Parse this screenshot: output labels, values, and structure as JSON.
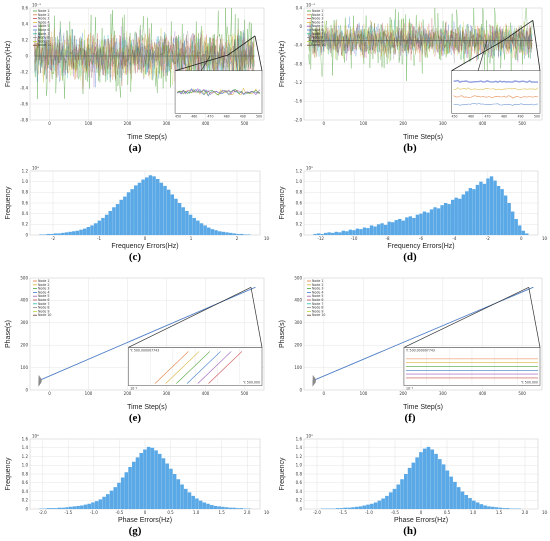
{
  "figure": {
    "panel_labels": [
      "(a)",
      "(b)",
      "(c)",
      "(d)",
      "(e)",
      "(f)",
      "(g)",
      "(h)"
    ]
  },
  "chart_data": [
    {
      "id": "a",
      "type": "line",
      "xlabel": "Time Step(s)",
      "ylabel": "Frequency(Hz)",
      "xlim": [
        0,
        520
      ],
      "ylim": [
        -0.8,
        0.6
      ],
      "x_ticks": [
        "0",
        "100",
        "200",
        "300",
        "400",
        "500"
      ],
      "y_ticks": [
        "-0.8",
        "-0.6",
        "-0.4",
        "-0.2",
        "0",
        "0.2",
        "0.4",
        "0.6"
      ],
      "scale_note": "10⁻³",
      "legend": [
        "Node 1",
        "Node 2",
        "Node 3",
        "Node 4",
        "Node 5",
        "Node 6",
        "Node 7",
        "Node 8",
        "Node 9",
        "Node 10"
      ],
      "legend_position": "top-left",
      "noise_amplitude": 0.45,
      "mean": 0.0,
      "series_colors": [
        "#4da33a",
        "#e07b39",
        "#c94b4b",
        "#d9b43a",
        "#9b59b6",
        "#3a7dc9",
        "#2bb5a8",
        "#8a8a8a",
        "#b5d33a",
        "#6b3a2a"
      ],
      "inset": true,
      "inset_ticks": [
        "450",
        "460",
        "470",
        "480",
        "490",
        "500"
      ]
    },
    {
      "id": "b",
      "type": "line",
      "xlabel": "Time Step(s)",
      "ylabel": "Frequency(Hz)",
      "xlim": [
        0,
        520
      ],
      "ylim": [
        -2.0,
        0.6
      ],
      "x_ticks": [
        "0",
        "100",
        "200",
        "300",
        "400",
        "500"
      ],
      "y_ticks": [
        "-2.0",
        "-1.6",
        "-1.2",
        "-0.8",
        "-0.4",
        "0",
        "0.4"
      ],
      "scale_note": "10⁻³",
      "legend": [
        "Node 1",
        "Node 2",
        "Node 3",
        "Node 4",
        "Node 5",
        "Node 6",
        "Node 7",
        "Node 8",
        "Node 9",
        "Node 10"
      ],
      "legend_position": "top-left",
      "noise_amplitude": 0.6,
      "mean": -0.15,
      "series_colors": [
        "#4da33a",
        "#e07b39",
        "#c94b4b",
        "#d9b43a",
        "#9b59b6",
        "#3a7dc9",
        "#2bb5a8",
        "#8a8a8a",
        "#b5d33a",
        "#6b3a2a"
      ],
      "inset": true,
      "inset_ticks": [
        "450",
        "460",
        "470",
        "480",
        "490",
        "500"
      ]
    },
    {
      "id": "c",
      "type": "bar",
      "xlabel": "Frequency Errors(Hz)",
      "ylabel": "Frequency",
      "xlim": [
        -3,
        3
      ],
      "ylim": [
        0,
        1.2
      ],
      "x_ticks": [
        "-2",
        "-1",
        "0",
        "1",
        "2"
      ],
      "y_ticks": [
        "0",
        "0.2",
        "0.4",
        "0.6",
        "0.8",
        "1.0",
        "1.2"
      ],
      "scale_note": "10⁴",
      "x_scale_note": "10⁻³",
      "color": "#5aa9e6",
      "values": [
        0.01,
        0.01,
        0.02,
        0.02,
        0.03,
        0.03,
        0.04,
        0.05,
        0.06,
        0.07,
        0.08,
        0.1,
        0.12,
        0.15,
        0.18,
        0.22,
        0.27,
        0.32,
        0.38,
        0.45,
        0.52,
        0.58,
        0.66,
        0.72,
        0.8,
        0.86,
        0.93,
        0.98,
        1.04,
        1.08,
        1.12,
        1.1,
        1.05,
        0.98,
        0.92,
        0.85,
        0.76,
        0.68,
        0.6,
        0.52,
        0.45,
        0.38,
        0.32,
        0.27,
        0.22,
        0.18,
        0.14,
        0.11,
        0.09,
        0.07,
        0.06,
        0.05,
        0.04,
        0.03,
        0.02,
        0.02,
        0.01,
        0.01
      ]
    },
    {
      "id": "d",
      "type": "bar",
      "xlabel": "Frequency Errors(Hz)",
      "ylabel": "Frequency",
      "xlim": [
        -14,
        2
      ],
      "ylim": [
        0,
        1.2
      ],
      "x_ticks": [
        "-12",
        "-10",
        "-8",
        "-6",
        "-4",
        "-2",
        "0"
      ],
      "y_ticks": [
        "0",
        "0.2",
        "0.4",
        "0.6",
        "0.8",
        "1.0",
        "1.2"
      ],
      "scale_note": "10³",
      "x_scale_note": "10⁻⁴",
      "color": "#5aa9e6",
      "values": [
        0.02,
        0.03,
        0.02,
        0.04,
        0.05,
        0.04,
        0.06,
        0.05,
        0.08,
        0.07,
        0.1,
        0.09,
        0.12,
        0.11,
        0.14,
        0.13,
        0.18,
        0.16,
        0.2,
        0.22,
        0.19,
        0.25,
        0.24,
        0.28,
        0.3,
        0.27,
        0.33,
        0.35,
        0.32,
        0.38,
        0.4,
        0.44,
        0.42,
        0.48,
        0.52,
        0.5,
        0.56,
        0.6,
        0.58,
        0.66,
        0.7,
        0.68,
        0.76,
        0.82,
        0.88,
        0.86,
        0.94,
        1.0,
        0.96,
        1.06,
        1.1,
        1.02,
        0.92,
        0.86,
        0.74,
        0.6,
        0.44,
        0.3,
        0.18,
        0.08,
        0.03
      ]
    },
    {
      "id": "e",
      "type": "line",
      "xlabel": "Time Step(s)",
      "ylabel": "Phase(s)",
      "xlim": [
        -20,
        520
      ],
      "ylim": [
        -50,
        550
      ],
      "x_ticks": [
        "0",
        "100",
        "200",
        "300",
        "400",
        "500"
      ],
      "y_ticks": [
        "0",
        "100",
        "200",
        "300",
        "400",
        "500"
      ],
      "legend": [
        "Node 1",
        "Node 2",
        "Node 3",
        "Node 4",
        "Node 5",
        "Node 6",
        "Node 7",
        "Node 8",
        "Node 9",
        "Node 10"
      ],
      "legend_position": "top-left",
      "start": [
        0,
        0
      ],
      "end": [
        500,
        500
      ],
      "color": "#5b87c9",
      "inset": true,
      "inset_note": "10⁻⁴",
      "inset_label_top": "Y: 500.000007743",
      "inset_label_bottom": "Y: 500.000"
    },
    {
      "id": "f",
      "type": "line",
      "xlabel": "Time Step(s)",
      "ylabel": "Phase(s)",
      "xlim": [
        -20,
        520
      ],
      "ylim": [
        -50,
        550
      ],
      "x_ticks": [
        "0",
        "100",
        "200",
        "300",
        "400",
        "500"
      ],
      "y_ticks": [
        "0",
        "100",
        "200",
        "300",
        "400",
        "500"
      ],
      "legend": [
        "Node 1",
        "Node 2",
        "Node 3",
        "Node 4",
        "Node 5",
        "Node 6",
        "Node 7",
        "Node 8",
        "Node 9",
        "Node 10"
      ],
      "legend_position": "top-left",
      "start": [
        0,
        0
      ],
      "end": [
        500,
        500
      ],
      "color": "#5b87c9",
      "inset": true,
      "inset_note": "10⁻⁴",
      "inset_label_top": "Y: 500.000007743",
      "inset_label_bottom": "Y: 500.000"
    },
    {
      "id": "g",
      "type": "bar",
      "xlabel": "Phase Errors(Hz)",
      "ylabel": "Frequency",
      "xlim": [
        -2.5,
        2.5
      ],
      "ylim": [
        0,
        1.6
      ],
      "x_ticks": [
        "-2.0",
        "-1.5",
        "-1.0",
        "-0.5",
        "0",
        "0.5",
        "1.0",
        "1.5",
        "2.0"
      ],
      "y_ticks": [
        "0",
        "0.2",
        "0.4",
        "0.6",
        "0.8",
        "1.0",
        "1.2",
        "1.4",
        "1.6"
      ],
      "scale_note": "10⁴",
      "x_scale_note": "10⁻⁶",
      "color": "#5aa9e6",
      "values": [
        0.01,
        0.01,
        0.02,
        0.02,
        0.02,
        0.03,
        0.03,
        0.04,
        0.05,
        0.06,
        0.07,
        0.08,
        0.1,
        0.12,
        0.15,
        0.18,
        0.22,
        0.28,
        0.34,
        0.42,
        0.5,
        0.6,
        0.72,
        0.84,
        0.96,
        1.08,
        1.18,
        1.28,
        1.36,
        1.42,
        1.4,
        1.34,
        1.26,
        1.16,
        1.04,
        0.92,
        0.8,
        0.68,
        0.56,
        0.46,
        0.38,
        0.3,
        0.24,
        0.19,
        0.15,
        0.12,
        0.09,
        0.07,
        0.06,
        0.05,
        0.04,
        0.03,
        0.03,
        0.02,
        0.02,
        0.01,
        0.01
      ]
    },
    {
      "id": "h",
      "type": "bar",
      "xlabel": "Phase Errors(Hz)",
      "ylabel": "Frequency",
      "xlim": [
        -2.5,
        2.5
      ],
      "ylim": [
        0,
        1.6
      ],
      "x_ticks": [
        "-2.0",
        "-1.5",
        "-1.0",
        "-0.5",
        "0",
        "0.5",
        "1.0",
        "1.5",
        "2.0"
      ],
      "y_ticks": [
        "0",
        "0.2",
        "0.4",
        "0.6",
        "0.8",
        "1.0",
        "1.2",
        "1.4",
        "1.6"
      ],
      "scale_note": "10³",
      "x_scale_note": "10⁻⁶",
      "color": "#5aa9e6",
      "values": [
        0.0,
        0.0,
        0.01,
        0.01,
        0.01,
        0.01,
        0.02,
        0.02,
        0.03,
        0.03,
        0.04,
        0.05,
        0.06,
        0.08,
        0.1,
        0.12,
        0.15,
        0.19,
        0.24,
        0.3,
        0.38,
        0.46,
        0.56,
        0.68,
        0.8,
        0.94,
        1.06,
        1.18,
        1.3,
        1.38,
        1.42,
        1.36,
        1.26,
        1.14,
        1.02,
        0.88,
        0.74,
        0.62,
        0.5,
        0.4,
        0.32,
        0.25,
        0.19,
        0.15,
        0.11,
        0.08,
        0.06,
        0.05,
        0.04,
        0.03,
        0.02,
        0.02,
        0.01,
        0.01,
        0.01,
        0.0,
        0.0
      ]
    }
  ]
}
